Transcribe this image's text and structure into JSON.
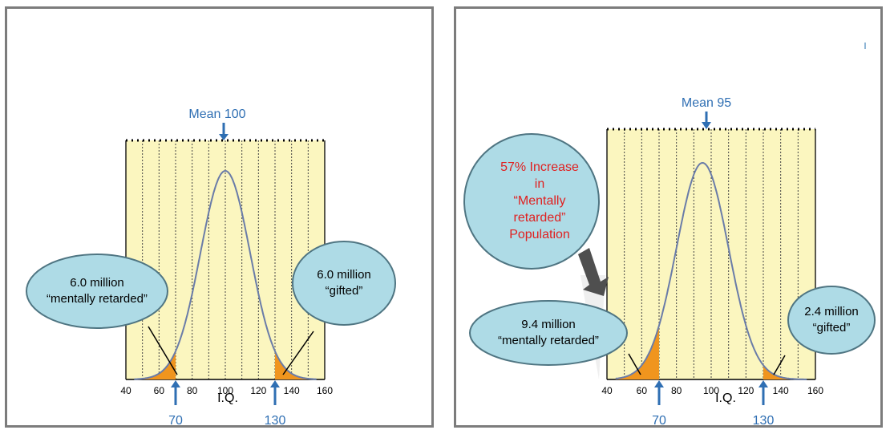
{
  "colors": {
    "plot_fill": "#fbf6bf",
    "bubble_fill": "#aedbe6",
    "bubble_stroke": "#4f7582",
    "curve": "#6a7ca8",
    "tail_fill": "#f0951e",
    "blue_label": "#2f6fb3",
    "red_text": "#e02020",
    "frame": "#7c7c7c"
  },
  "axis": {
    "xlabel": "I.Q.",
    "ticks": [
      "40",
      "60",
      "80",
      "100",
      "120",
      "140",
      "160"
    ]
  },
  "left": {
    "mean_label": "Mean 100",
    "marker_low": "70",
    "marker_high": "130",
    "bubble_low": {
      "line1": "6.0 million",
      "line2": "“mentally retarded”"
    },
    "bubble_high": {
      "line1": "6.0 million",
      "line2": "“gifted”"
    }
  },
  "right": {
    "mean_label": "Mean 95",
    "marker_low": "70",
    "marker_high": "130",
    "bubble_low": {
      "line1": "9.4 million",
      "line2": "“mentally retarded”"
    },
    "bubble_high": {
      "line1": "2.4 million",
      "line2": "“gifted”"
    },
    "callout": [
      "57% Increase",
      "in",
      "“Mentally",
      "retarded”",
      "Population"
    ]
  },
  "chart_data": [
    {
      "type": "area",
      "distribution": "normal",
      "mean": 100,
      "xlim": [
        40,
        160
      ],
      "xlabel": "I.Q.",
      "thresholds": [
        70,
        130
      ],
      "annotations": [
        "6.0 million “mentally retarded”",
        "6.0 million “gifted”"
      ]
    },
    {
      "type": "area",
      "distribution": "normal",
      "mean": 95,
      "xlim": [
        40,
        160
      ],
      "xlabel": "I.Q.",
      "thresholds": [
        70,
        130
      ],
      "annotations": [
        "9.4 million “mentally retarded”",
        "2.4 million “gifted”",
        "57% Increase in “Mentally retarded” Population"
      ]
    }
  ]
}
